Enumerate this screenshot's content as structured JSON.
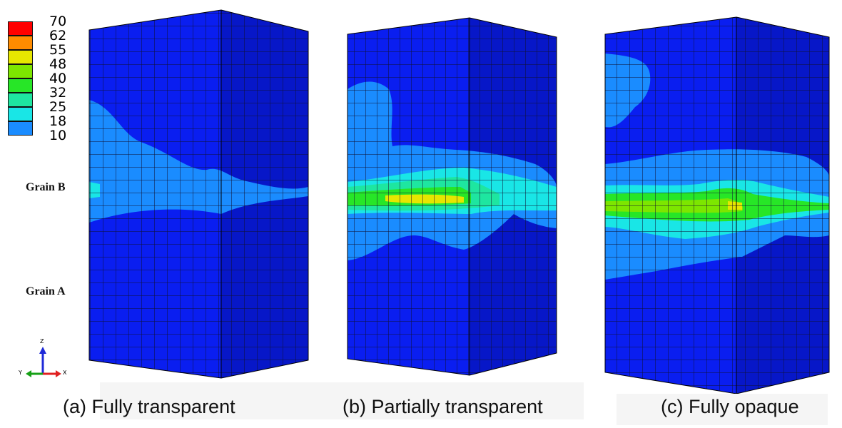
{
  "legend": {
    "values": [
      "70",
      "62",
      "55",
      "48",
      "40",
      "32",
      "25",
      "18",
      "10"
    ],
    "colors": [
      "#ff0000",
      "#ff8c00",
      "#e6e600",
      "#7de600",
      "#27e627",
      "#1ee6a0",
      "#19e6e6",
      "#1a8cff",
      "#0a1ef0"
    ]
  },
  "grain_labels": {
    "grain_b": "Grain B",
    "grain_a": "Grain A"
  },
  "axes": {
    "z": "Z",
    "y": "Y",
    "x": "X"
  },
  "captions": {
    "a": "(a) Fully transparent",
    "b": "(b) Partially transparent",
    "c": "(c) Fully opaque"
  },
  "colors": {
    "mesh_base": "#0a1ef0",
    "mesh_dark": "#0717c8",
    "band_18": "#1a8cff",
    "band_25": "#19e6e6",
    "band_32": "#1ee6a0",
    "band_40": "#27e627",
    "band_48": "#7de600",
    "band_55": "#e6e600",
    "band_62": "#ff8c00",
    "grid": "#101030"
  }
}
